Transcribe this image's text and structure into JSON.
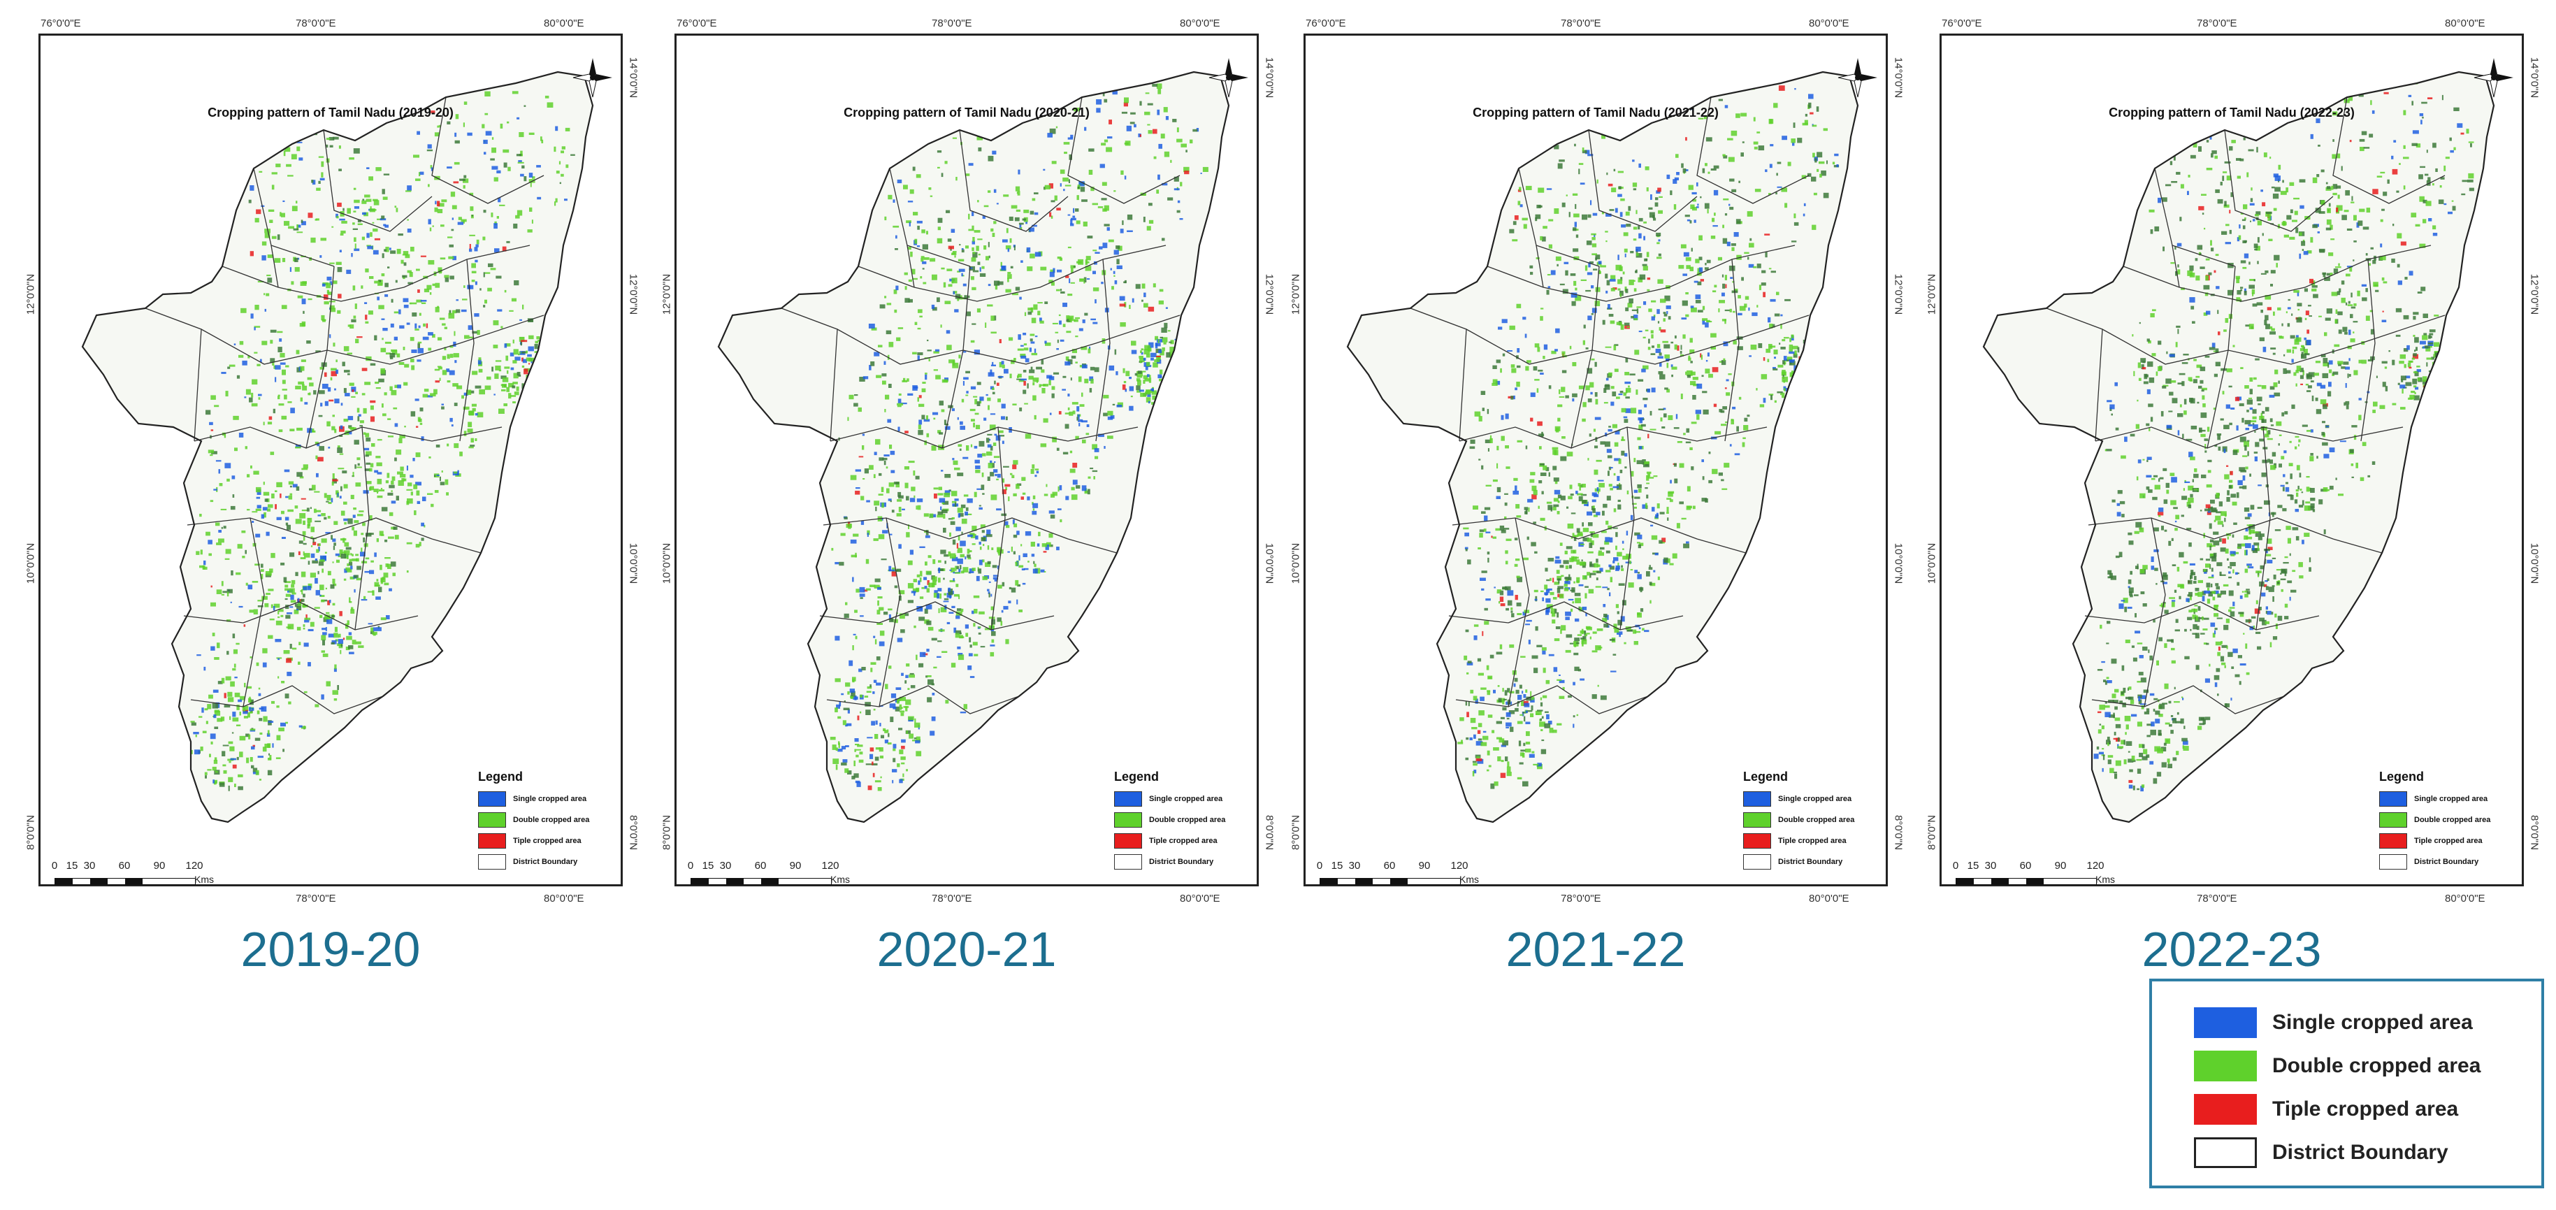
{
  "coords": {
    "lon_left": "76°0'0\"E",
    "lon_mid": "78°0'0\"E",
    "lon_right": "80°0'0\"E",
    "lat_14": "14°0'0\"N",
    "lat_12": "12°0'0\"N",
    "lat_10": "10°0'0\"N",
    "lat_8": "8°0'0\"N"
  },
  "scale": {
    "ticks": [
      "0",
      "15",
      "30",
      "60",
      "90",
      "120"
    ],
    "unit": "Kms"
  },
  "inner_legend": {
    "title": "Legend",
    "items": [
      {
        "label": "Single cropped area",
        "color": "#1e5fe0"
      },
      {
        "label": "Double cropped area",
        "color": "#5fd12c"
      },
      {
        "label": "Tiple cropped area",
        "color": "#e81e1e"
      },
      {
        "label": "District Boundary",
        "color": "#ffffff"
      }
    ]
  },
  "panels": [
    {
      "title": "Cropping pattern of Tamil Nadu (2019-20)",
      "year": "2019-20"
    },
    {
      "title": "Cropping pattern of Tamil Nadu (2020-21)",
      "year": "2020-21"
    },
    {
      "title": "Cropping pattern of Tamil Nadu (2021-22)",
      "year": "2021-22"
    },
    {
      "title": "Cropping pattern of Tamil Nadu (2022-23)",
      "year": "2022-23"
    }
  ],
  "big_legend": {
    "items": [
      {
        "label": "Single cropped area",
        "color": "#1e5fe0"
      },
      {
        "label": "Double cropped area",
        "color": "#5fd12c"
      },
      {
        "label": "Tiple cropped area",
        "color": "#e81e1e"
      },
      {
        "label": "District Boundary",
        "color": "#ffffff"
      }
    ]
  },
  "colors": {
    "single": "#1e5fe0",
    "double": "#5fd12c",
    "triple": "#e81e1e",
    "year_text": "#1c6e8f",
    "legend_border": "#2f7fa6"
  }
}
